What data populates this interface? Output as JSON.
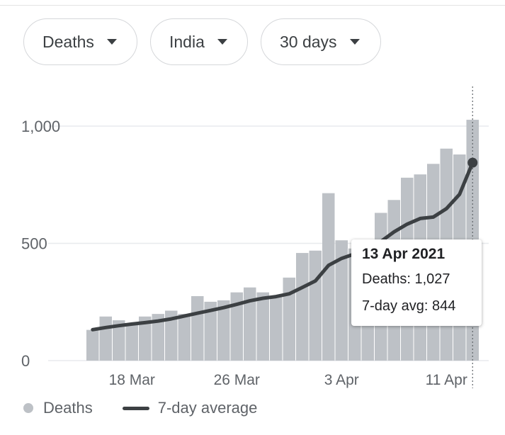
{
  "filters": {
    "metric": "Deaths",
    "region": "India",
    "range": "30 days"
  },
  "legend": {
    "bars_label": "Deaths",
    "line_label": "7-day average"
  },
  "tooltip": {
    "date": "13 Apr 2021",
    "deaths_label": "Deaths",
    "deaths_value": "1,027",
    "avg_label": "7-day avg",
    "avg_value": "844"
  },
  "colors": {
    "bar": "#bdc1c6",
    "line": "#3c4043",
    "grid": "#e8eaed",
    "cursor": "#5f6368"
  },
  "chart_data": {
    "type": "bar",
    "title": "",
    "xlabel": "",
    "ylabel": "",
    "ylim": [
      0,
      1000
    ],
    "yticks": [
      0,
      500,
      1000
    ],
    "ytick_labels": [
      "0",
      "500",
      "1,000"
    ],
    "grid": true,
    "legend_position": "bottom-left",
    "categories": [
      "15 Mar",
      "16 Mar",
      "17 Mar",
      "18 Mar",
      "19 Mar",
      "20 Mar",
      "21 Mar",
      "22 Mar",
      "23 Mar",
      "24 Mar",
      "25 Mar",
      "26 Mar",
      "27 Mar",
      "28 Mar",
      "29 Mar",
      "30 Mar",
      "31 Mar",
      "1 Apr",
      "2 Apr",
      "3 Apr",
      "4 Apr",
      "5 Apr",
      "6 Apr",
      "7 Apr",
      "8 Apr",
      "9 Apr",
      "10 Apr",
      "11 Apr",
      "12 Apr",
      "13 Apr"
    ],
    "xtick_labels": [
      {
        "category": "18 Mar",
        "label": "18 Mar"
      },
      {
        "category": "26 Mar",
        "label": "26 Mar"
      },
      {
        "category": "3 Apr",
        "label": "3 Apr"
      },
      {
        "category": "11 Apr",
        "label": "11 Apr"
      }
    ],
    "series": [
      {
        "name": "Deaths",
        "type": "bar",
        "values": [
          131,
          188,
          172,
          154,
          188,
          199,
          213,
          199,
          275,
          251,
          257,
          291,
          312,
          291,
          271,
          354,
          459,
          469,
          714,
          513,
          478,
          446,
          630,
          685,
          780,
          794,
          839,
          904,
          879,
          1027
        ]
      },
      {
        "name": "7-day average",
        "type": "line",
        "start_index": 0,
        "values": [
          132,
          141,
          149,
          156,
          162,
          169,
          178,
          190,
          202,
          214,
          226,
          240,
          255,
          266,
          273,
          285,
          312,
          340,
          406,
          436,
          455,
          470,
          508,
          549,
          582,
          606,
          612,
          648,
          709,
          844
        ]
      }
    ],
    "highlight": {
      "category": "13 Apr",
      "deaths": 1027,
      "avg": 844
    }
  }
}
